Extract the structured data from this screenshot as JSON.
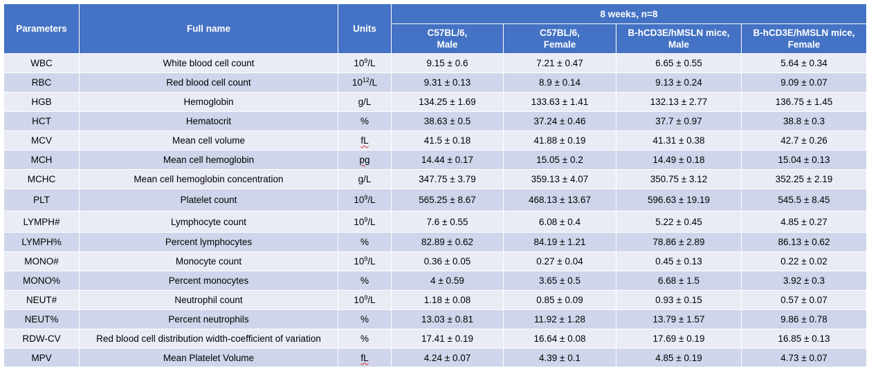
{
  "headers": {
    "parameters": "Parameters",
    "full_name": "Full name",
    "units": "Units",
    "group": "8 weeks, n=8",
    "columns": [
      "C57BL/6,\nMale",
      "C57BL/6,\nFemale",
      "B-hCD3E/hMSLN mice,\nMale",
      "B-hCD3E/hMSLN mice,\nFemale"
    ]
  },
  "rows": [
    {
      "param": "WBC",
      "name": "White blood cell count",
      "unit_base": "10",
      "unit_sup": "9",
      "unit_tail": "/L",
      "values": [
        "9.15 ± 0.6",
        "7.21 ± 0.47",
        "6.65 ± 0.55",
        "5.64 ± 0.34"
      ]
    },
    {
      "param": "RBC",
      "name": "Red blood cell count",
      "unit_base": "10",
      "unit_sup": "12",
      "unit_tail": "/L",
      "values": [
        "9.31 ± 0.13",
        "8.9 ± 0.14",
        "9.13 ± 0.24",
        "9.09 ± 0.07"
      ]
    },
    {
      "param": "HGB",
      "name": "Hemoglobin",
      "unit_base": "g/L",
      "unit_sup": "",
      "unit_tail": "",
      "values": [
        "134.25 ± 1.69",
        "133.63 ± 1.41",
        "132.13 ± 2.77",
        "136.75 ± 1.45"
      ]
    },
    {
      "param": "HCT",
      "name": "Hematocrit",
      "unit_base": "%",
      "unit_sup": "",
      "unit_tail": "",
      "values": [
        "38.63 ± 0.5",
        "37.24 ± 0.46",
        "37.7 ± 0.97",
        "38.8 ± 0.3"
      ]
    },
    {
      "param": "MCV",
      "name": "Mean cell volume",
      "unit_base": "fL",
      "unit_sup": "",
      "unit_tail": "",
      "squiggle": true,
      "values": [
        "41.5 ± 0.18",
        "41.88 ± 0.19",
        "41.31 ± 0.38",
        "42.7 ± 0.26"
      ]
    },
    {
      "param": "MCH",
      "name": "Mean cell hemoglobin",
      "unit_base": "pg",
      "unit_sup": "",
      "unit_tail": "",
      "squiggle": true,
      "values": [
        "14.44 ± 0.17",
        "15.05 ± 0.2",
        "14.49 ± 0.18",
        "15.04 ± 0.13"
      ]
    },
    {
      "param": "MCHC",
      "name": "Mean cell hemoglobin concentration",
      "unit_base": "g/L",
      "unit_sup": "",
      "unit_tail": "",
      "values": [
        "347.75 ± 3.79",
        "359.13 ± 4.07",
        "350.75 ± 3.12",
        "352.25 ± 2.19"
      ]
    },
    {
      "param": "PLT",
      "name": "Platelet count",
      "unit_base": "10",
      "unit_sup": "9",
      "unit_tail": "/L",
      "values": [
        "565.25 ± 8.67",
        "468.13 ± 13.67",
        "596.63 ± 19.19",
        "545.5 ± 8.45"
      ]
    },
    {
      "param": "LYMPH#",
      "name": "Lymphocyte count",
      "unit_base": "10",
      "unit_sup": "9",
      "unit_tail": "/L",
      "values": [
        "7.6 ± 0.55",
        "6.08 ± 0.4",
        "5.22 ± 0.45",
        "4.85 ± 0.27"
      ]
    },
    {
      "param": "LYMPH%",
      "name": "Percent lymphocytes",
      "unit_base": "%",
      "unit_sup": "",
      "unit_tail": "",
      "values": [
        "82.89 ± 0.62",
        "84.19 ± 1.21",
        "78.86 ± 2.89",
        "86.13 ± 0.62"
      ]
    },
    {
      "param": "MONO#",
      "name": "Monocyte count",
      "unit_base": "10",
      "unit_sup": "9",
      "unit_tail": "/L",
      "values": [
        "0.36 ± 0.05",
        "0.27 ± 0.04",
        "0.45 ± 0.13",
        "0.22 ± 0.02"
      ]
    },
    {
      "param": "MONO%",
      "name": "Percent monocytes",
      "unit_base": "%",
      "unit_sup": "",
      "unit_tail": "",
      "values": [
        "4 ± 0.59",
        "3.65 ± 0.5",
        "6.68 ± 1.5",
        "3.92 ± 0.3"
      ]
    },
    {
      "param": "NEUT#",
      "name": "Neutrophil count",
      "unit_base": "10",
      "unit_sup": "9",
      "unit_tail": "/L",
      "values": [
        "1.18 ± 0.08",
        "0.85 ± 0.09",
        "0.93 ± 0.15",
        "0.57 ± 0.07"
      ]
    },
    {
      "param": "NEUT%",
      "name": "Percent neutrophils",
      "unit_base": "%",
      "unit_sup": "",
      "unit_tail": "",
      "values": [
        "13.03 ± 0.81",
        "11.92 ± 1.28",
        "13.79 ± 1.57",
        "9.86 ± 0.78"
      ]
    },
    {
      "param": "RDW-CV",
      "name": "Red blood cell distribution width-coefficient of variation",
      "unit_base": "%",
      "unit_sup": "",
      "unit_tail": "",
      "values": [
        "17.41 ± 0.19",
        "16.64 ± 0.08",
        "17.69 ± 0.19",
        "16.85 ± 0.13"
      ]
    },
    {
      "param": "MPV",
      "name": "Mean Platelet Volume",
      "unit_base": "fL",
      "unit_sup": "",
      "unit_tail": "",
      "squiggle": true,
      "values": [
        "4.24 ± 0.07",
        "4.39 ± 0.1",
        "4.85 ± 0.19",
        "4.73 ± 0.07"
      ]
    }
  ],
  "colors": {
    "header_bg": "#4472c4",
    "header_text": "#ffffff",
    "row_light": "#e9ebf5",
    "row_dark": "#cfd5ea",
    "squiggle": "#e03030"
  }
}
